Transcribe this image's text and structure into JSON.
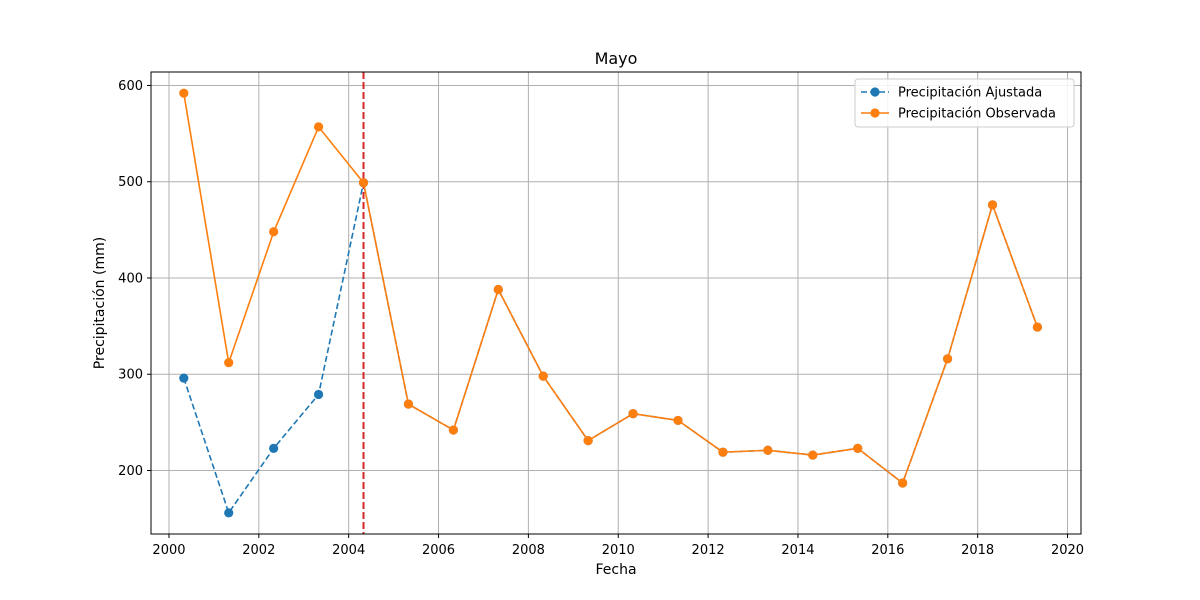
{
  "chart_data": {
    "type": "line",
    "title": "Mayo",
    "xlabel": "Fecha",
    "ylabel": "Precipitación (mm)",
    "xlim": [
      1999.6,
      2020.3
    ],
    "ylim": [
      134,
      614
    ],
    "x_ticks": [
      2000,
      2002,
      2004,
      2006,
      2008,
      2010,
      2012,
      2014,
      2016,
      2018,
      2020
    ],
    "y_ticks": [
      200,
      300,
      400,
      500,
      600
    ],
    "grid": true,
    "legend_position": "top-right",
    "vline": {
      "x": 2004.33,
      "color": "#d62728",
      "style": "dashed"
    },
    "series": [
      {
        "name": "Precipitación Ajustada",
        "color": "#1f77b4",
        "style": "dashed",
        "marker": "circle",
        "x": [
          2000.33,
          2001.33,
          2002.33,
          2003.33,
          2004.33,
          2005.33,
          2006.33,
          2007.33,
          2008.33,
          2009.33,
          2010.33,
          2011.33,
          2012.33,
          2013.33,
          2014.33,
          2015.33,
          2016.33,
          2017.33,
          2018.33,
          2019.33
        ],
        "values": [
          296,
          156,
          223,
          279,
          499,
          269,
          242,
          388,
          298,
          231,
          259,
          252,
          219,
          221,
          216,
          223,
          187,
          316,
          476,
          349
        ]
      },
      {
        "name": "Precipitación Observada",
        "color": "#ff7f0e",
        "style": "solid",
        "marker": "circle",
        "x": [
          2000.33,
          2001.33,
          2002.33,
          2003.33,
          2004.33,
          2005.33,
          2006.33,
          2007.33,
          2008.33,
          2009.33,
          2010.33,
          2011.33,
          2012.33,
          2013.33,
          2014.33,
          2015.33,
          2016.33,
          2017.33,
          2018.33,
          2019.33
        ],
        "values": [
          592,
          312,
          448,
          557,
          499,
          269,
          242,
          388,
          298,
          231,
          259,
          252,
          219,
          221,
          216,
          223,
          187,
          316,
          476,
          349
        ]
      }
    ]
  }
}
